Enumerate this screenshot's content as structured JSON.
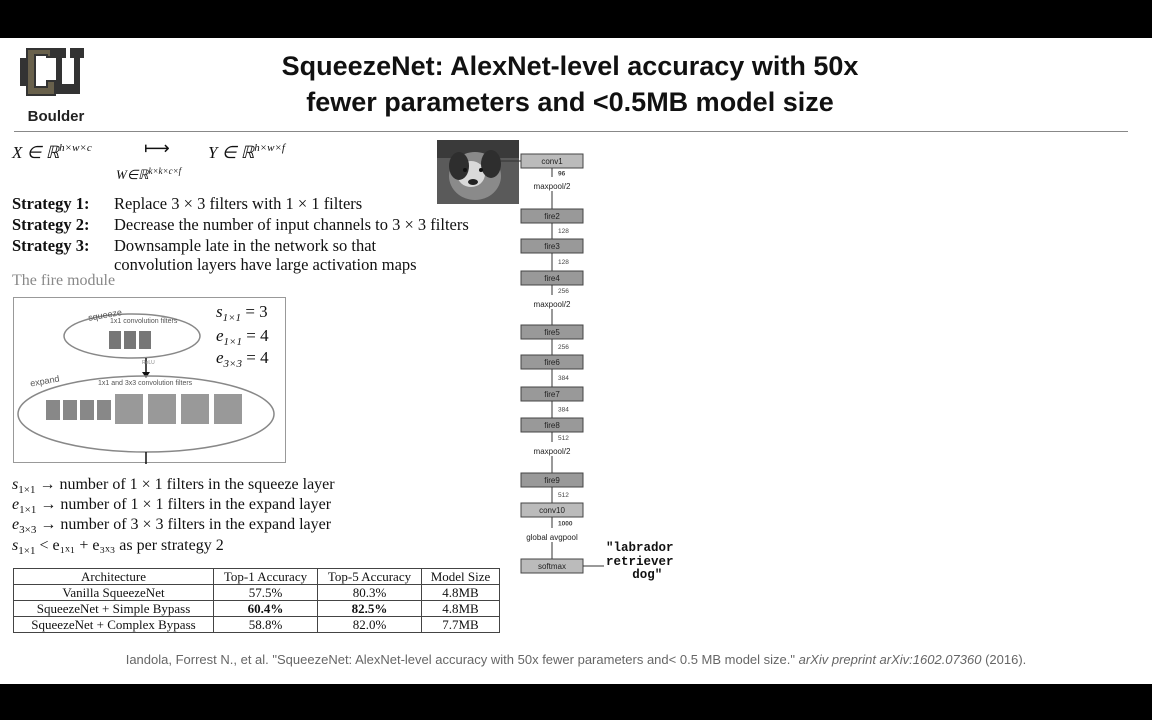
{
  "header": {
    "logo_text": "Boulder",
    "title_line1": "SqueezeNet: AlexNet-level accuracy with 50x",
    "title_line2": "fewer parameters and <0.5MB model size"
  },
  "math": {
    "x_def": "X ∈ ℝ",
    "x_sup": "h×w×c",
    "arrow": "⟼",
    "w_def": "W∈ℝ",
    "w_sup": "k×k×c×f",
    "y_def": "Y ∈ ℝ",
    "y_sup": "h×w×f"
  },
  "strategies": [
    {
      "label": "Strategy 1:",
      "text": "Replace 3 × 3 filters with 1 × 1 filters"
    },
    {
      "label": "Strategy 2:",
      "text": "Decrease the number of input channels to 3 × 3 filters"
    },
    {
      "label": "Strategy 3:",
      "text": "Downsample late in the network so that"
    },
    {
      "label": "",
      "text": "convolution layers have large activation maps"
    }
  ],
  "fire_module": {
    "section_label": "The fire module",
    "squeeze_label": "squeeze",
    "squeeze_caption": "1x1 convolution filters",
    "relu_label": "ReLU",
    "expand_label": "expand",
    "expand_caption": "1x1 and 3x3 convolution filters",
    "params": [
      {
        "sym": "s",
        "sub": "1×1",
        "val": "= 3"
      },
      {
        "sym": "e",
        "sub": "1×1",
        "val": "= 4"
      },
      {
        "sym": "e",
        "sub": "3×3",
        "val": "= 4"
      }
    ]
  },
  "definitions": [
    {
      "sym": "s",
      "sub": "1×1",
      "text": "→ number of 1 × 1 filters in the squeeze layer"
    },
    {
      "sym": "e",
      "sub": "1×1",
      "text": "→ number of 1 × 1 filters in the expand layer"
    },
    {
      "sym": "e",
      "sub": "3×3",
      "text": "→ number of 3 × 3 filters in the expand layer"
    },
    {
      "sym": "s",
      "sub": "1×1",
      "text": "< e₁ₓ₁ + e₃ₓ₃ as per strategy 2"
    }
  ],
  "table": {
    "headers": [
      "Architecture",
      "Top-1 Accuracy",
      "Top-5 Accuracy",
      "Model Size"
    ],
    "rows": [
      [
        "Vanilla SqueezeNet",
        "57.5%",
        "80.3%",
        "4.8MB"
      ],
      [
        "SqueezeNet + Simple Bypass",
        "60.4%",
        "82.5%",
        "4.8MB"
      ],
      [
        "SqueezeNet + Complex Bypass",
        "58.8%",
        "82.0%",
        "7.7MB"
      ]
    ]
  },
  "network": {
    "layers": [
      {
        "name": "conv1",
        "annot": "96"
      },
      {
        "name": "maxpool/2",
        "annot": ""
      },
      {
        "name": "fire2",
        "annot": "128"
      },
      {
        "name": "fire3",
        "annot": "128"
      },
      {
        "name": "fire4",
        "annot": "256"
      },
      {
        "name": "maxpool/2",
        "annot": ""
      },
      {
        "name": "fire5",
        "annot": "256"
      },
      {
        "name": "fire6",
        "annot": "384"
      },
      {
        "name": "fire7",
        "annot": "384"
      },
      {
        "name": "fire8",
        "annot": "512"
      },
      {
        "name": "maxpool/2",
        "annot": ""
      },
      {
        "name": "fire9",
        "annot": "512"
      },
      {
        "name": "conv10",
        "annot": "1000"
      },
      {
        "name": "global avgpool",
        "annot": ""
      },
      {
        "name": "softmax",
        "annot": ""
      }
    ],
    "output_label": "\"labrador\nretriever\n  dog\""
  },
  "citation": {
    "text": "Iandola, Forrest N., et al. \"SqueezeNet: AlexNet-level accuracy with 50x fewer parameters and< 0.5 MB model size.\" ",
    "venue": "arXiv preprint arXiv:1602.07360",
    "year": " (2016)."
  }
}
